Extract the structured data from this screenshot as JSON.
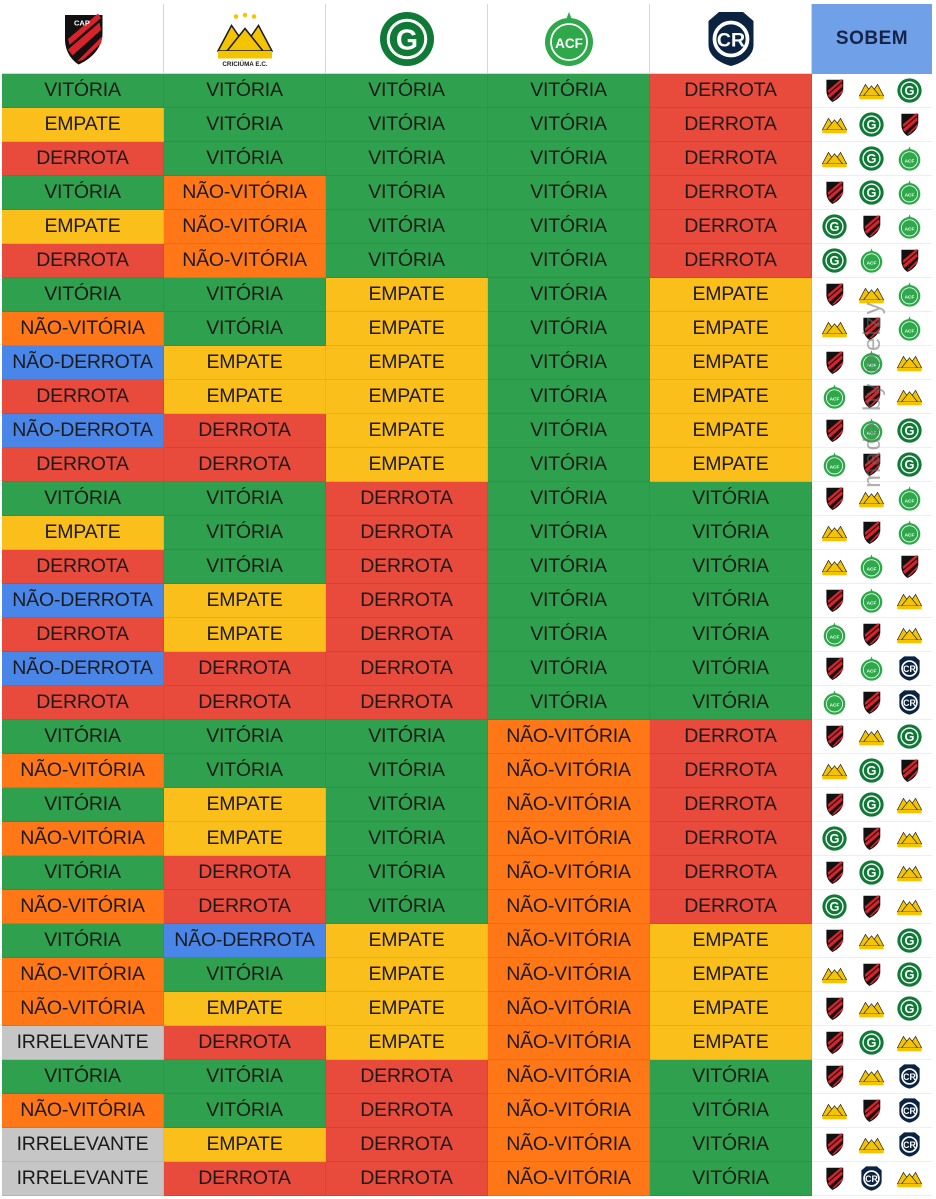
{
  "header": {
    "teams": [
      {
        "key": "cap",
        "icon": "athletico-paranaense-crest-icon",
        "crest_text": "CAP"
      },
      {
        "key": "cri",
        "icon": "criciuma-crest-icon",
        "crest_text": "CRICIÚMA E.C."
      },
      {
        "key": "goi",
        "icon": "goias-crest-icon",
        "crest_text": "G"
      },
      {
        "key": "cha",
        "icon": "chapecoense-crest-icon",
        "crest_text": "ACF"
      },
      {
        "key": "rem",
        "icon": "remo-crest-icon",
        "crest_text": "CR"
      }
    ],
    "sobem_label": "SOBEM"
  },
  "watermark": "made by melzy",
  "colors": {
    "VITÓRIA": "#2fa04e",
    "EMPATE": "#fbbf1c",
    "DERROTA": "#e84a3c",
    "NÃO-VITÓRIA": "#ff7716",
    "NÃO-DERROTA": "#4a86e8",
    "IRRELEVANTE": "#c6c6c6"
  },
  "rows": [
    {
      "results": [
        "VITÓRIA",
        "VITÓRIA",
        "VITÓRIA",
        "VITÓRIA",
        "DERROTA"
      ],
      "sobem": [
        "cap",
        "cri",
        "goi"
      ]
    },
    {
      "results": [
        "EMPATE",
        "VITÓRIA",
        "VITÓRIA",
        "VITÓRIA",
        "DERROTA"
      ],
      "sobem": [
        "cri",
        "goi",
        "cap"
      ]
    },
    {
      "results": [
        "DERROTA",
        "VITÓRIA",
        "VITÓRIA",
        "VITÓRIA",
        "DERROTA"
      ],
      "sobem": [
        "cri",
        "goi",
        "cha"
      ]
    },
    {
      "results": [
        "VITÓRIA",
        "NÃO-VITÓRIA",
        "VITÓRIA",
        "VITÓRIA",
        "DERROTA"
      ],
      "sobem": [
        "cap",
        "goi",
        "cha"
      ]
    },
    {
      "results": [
        "EMPATE",
        "NÃO-VITÓRIA",
        "VITÓRIA",
        "VITÓRIA",
        "DERROTA"
      ],
      "sobem": [
        "goi",
        "cap",
        "cha"
      ]
    },
    {
      "results": [
        "DERROTA",
        "NÃO-VITÓRIA",
        "VITÓRIA",
        "VITÓRIA",
        "DERROTA"
      ],
      "sobem": [
        "goi",
        "cha",
        "cap"
      ]
    },
    {
      "results": [
        "VITÓRIA",
        "VITÓRIA",
        "EMPATE",
        "VITÓRIA",
        "EMPATE"
      ],
      "sobem": [
        "cap",
        "cri",
        "cha"
      ]
    },
    {
      "results": [
        "NÃO-VITÓRIA",
        "VITÓRIA",
        "EMPATE",
        "VITÓRIA",
        "EMPATE"
      ],
      "sobem": [
        "cri",
        "cap",
        "cha"
      ]
    },
    {
      "results": [
        "NÃO-DERROTA",
        "EMPATE",
        "EMPATE",
        "VITÓRIA",
        "EMPATE"
      ],
      "sobem": [
        "cap",
        "cha",
        "cri"
      ]
    },
    {
      "results": [
        "DERROTA",
        "EMPATE",
        "EMPATE",
        "VITÓRIA",
        "EMPATE"
      ],
      "sobem": [
        "cha",
        "cap",
        "cri"
      ]
    },
    {
      "results": [
        "NÃO-DERROTA",
        "DERROTA",
        "EMPATE",
        "VITÓRIA",
        "EMPATE"
      ],
      "sobem": [
        "cap",
        "cha",
        "goi"
      ]
    },
    {
      "results": [
        "DERROTA",
        "DERROTA",
        "EMPATE",
        "VITÓRIA",
        "EMPATE"
      ],
      "sobem": [
        "cha",
        "cap",
        "goi"
      ]
    },
    {
      "results": [
        "VITÓRIA",
        "VITÓRIA",
        "DERROTA",
        "VITÓRIA",
        "VITÓRIA"
      ],
      "sobem": [
        "cap",
        "cri",
        "cha"
      ]
    },
    {
      "results": [
        "EMPATE",
        "VITÓRIA",
        "DERROTA",
        "VITÓRIA",
        "VITÓRIA"
      ],
      "sobem": [
        "cri",
        "cap",
        "cha"
      ]
    },
    {
      "results": [
        "DERROTA",
        "VITÓRIA",
        "DERROTA",
        "VITÓRIA",
        "VITÓRIA"
      ],
      "sobem": [
        "cri",
        "cha",
        "cap"
      ]
    },
    {
      "results": [
        "NÃO-DERROTA",
        "EMPATE",
        "DERROTA",
        "VITÓRIA",
        "VITÓRIA"
      ],
      "sobem": [
        "cap",
        "cha",
        "cri"
      ]
    },
    {
      "results": [
        "DERROTA",
        "EMPATE",
        "DERROTA",
        "VITÓRIA",
        "VITÓRIA"
      ],
      "sobem": [
        "cha",
        "cap",
        "cri"
      ]
    },
    {
      "results": [
        "NÃO-DERROTA",
        "DERROTA",
        "DERROTA",
        "VITÓRIA",
        "VITÓRIA"
      ],
      "sobem": [
        "cap",
        "cha",
        "rem"
      ]
    },
    {
      "results": [
        "DERROTA",
        "DERROTA",
        "DERROTA",
        "VITÓRIA",
        "VITÓRIA"
      ],
      "sobem": [
        "cha",
        "cap",
        "rem"
      ]
    },
    {
      "results": [
        "VITÓRIA",
        "VITÓRIA",
        "VITÓRIA",
        "NÃO-VITÓRIA",
        "DERROTA"
      ],
      "sobem": [
        "cap",
        "cri",
        "goi"
      ]
    },
    {
      "results": [
        "NÃO-VITÓRIA",
        "VITÓRIA",
        "VITÓRIA",
        "NÃO-VITÓRIA",
        "DERROTA"
      ],
      "sobem": [
        "cri",
        "goi",
        "cap"
      ]
    },
    {
      "results": [
        "VITÓRIA",
        "EMPATE",
        "VITÓRIA",
        "NÃO-VITÓRIA",
        "DERROTA"
      ],
      "sobem": [
        "cap",
        "goi",
        "cri"
      ]
    },
    {
      "results": [
        "NÃO-VITÓRIA",
        "EMPATE",
        "VITÓRIA",
        "NÃO-VITÓRIA",
        "DERROTA"
      ],
      "sobem": [
        "goi",
        "cap",
        "cri"
      ]
    },
    {
      "results": [
        "VITÓRIA",
        "DERROTA",
        "VITÓRIA",
        "NÃO-VITÓRIA",
        "DERROTA"
      ],
      "sobem": [
        "cap",
        "goi",
        "cri"
      ]
    },
    {
      "results": [
        "NÃO-VITÓRIA",
        "DERROTA",
        "VITÓRIA",
        "NÃO-VITÓRIA",
        "DERROTA"
      ],
      "sobem": [
        "goi",
        "cap",
        "cri"
      ]
    },
    {
      "results": [
        "VITÓRIA",
        "NÃO-DERROTA",
        "EMPATE",
        "NÃO-VITÓRIA",
        "EMPATE"
      ],
      "sobem": [
        "cap",
        "cri",
        "goi"
      ]
    },
    {
      "results": [
        "NÃO-VITÓRIA",
        "VITÓRIA",
        "EMPATE",
        "NÃO-VITÓRIA",
        "EMPATE"
      ],
      "sobem": [
        "cri",
        "cap",
        "goi"
      ]
    },
    {
      "results": [
        "NÃO-VITÓRIA",
        "EMPATE",
        "EMPATE",
        "NÃO-VITÓRIA",
        "EMPATE"
      ],
      "sobem": [
        "cap",
        "cri",
        "goi"
      ]
    },
    {
      "results": [
        "IRRELEVANTE",
        "DERROTA",
        "EMPATE",
        "NÃO-VITÓRIA",
        "EMPATE"
      ],
      "sobem": [
        "cap",
        "goi",
        "cri"
      ]
    },
    {
      "results": [
        "VITÓRIA",
        "VITÓRIA",
        "DERROTA",
        "NÃO-VITÓRIA",
        "VITÓRIA"
      ],
      "sobem": [
        "cap",
        "cri",
        "rem"
      ]
    },
    {
      "results": [
        "NÃO-VITÓRIA",
        "VITÓRIA",
        "DERROTA",
        "NÃO-VITÓRIA",
        "VITÓRIA"
      ],
      "sobem": [
        "cri",
        "cap",
        "rem"
      ]
    },
    {
      "results": [
        "IRRELEVANTE",
        "EMPATE",
        "DERROTA",
        "NÃO-VITÓRIA",
        "VITÓRIA"
      ],
      "sobem": [
        "cap",
        "cri",
        "rem"
      ]
    },
    {
      "results": [
        "IRRELEVANTE",
        "DERROTA",
        "DERROTA",
        "NÃO-VITÓRIA",
        "VITÓRIA"
      ],
      "sobem": [
        "cap",
        "rem",
        "cri"
      ]
    }
  ]
}
